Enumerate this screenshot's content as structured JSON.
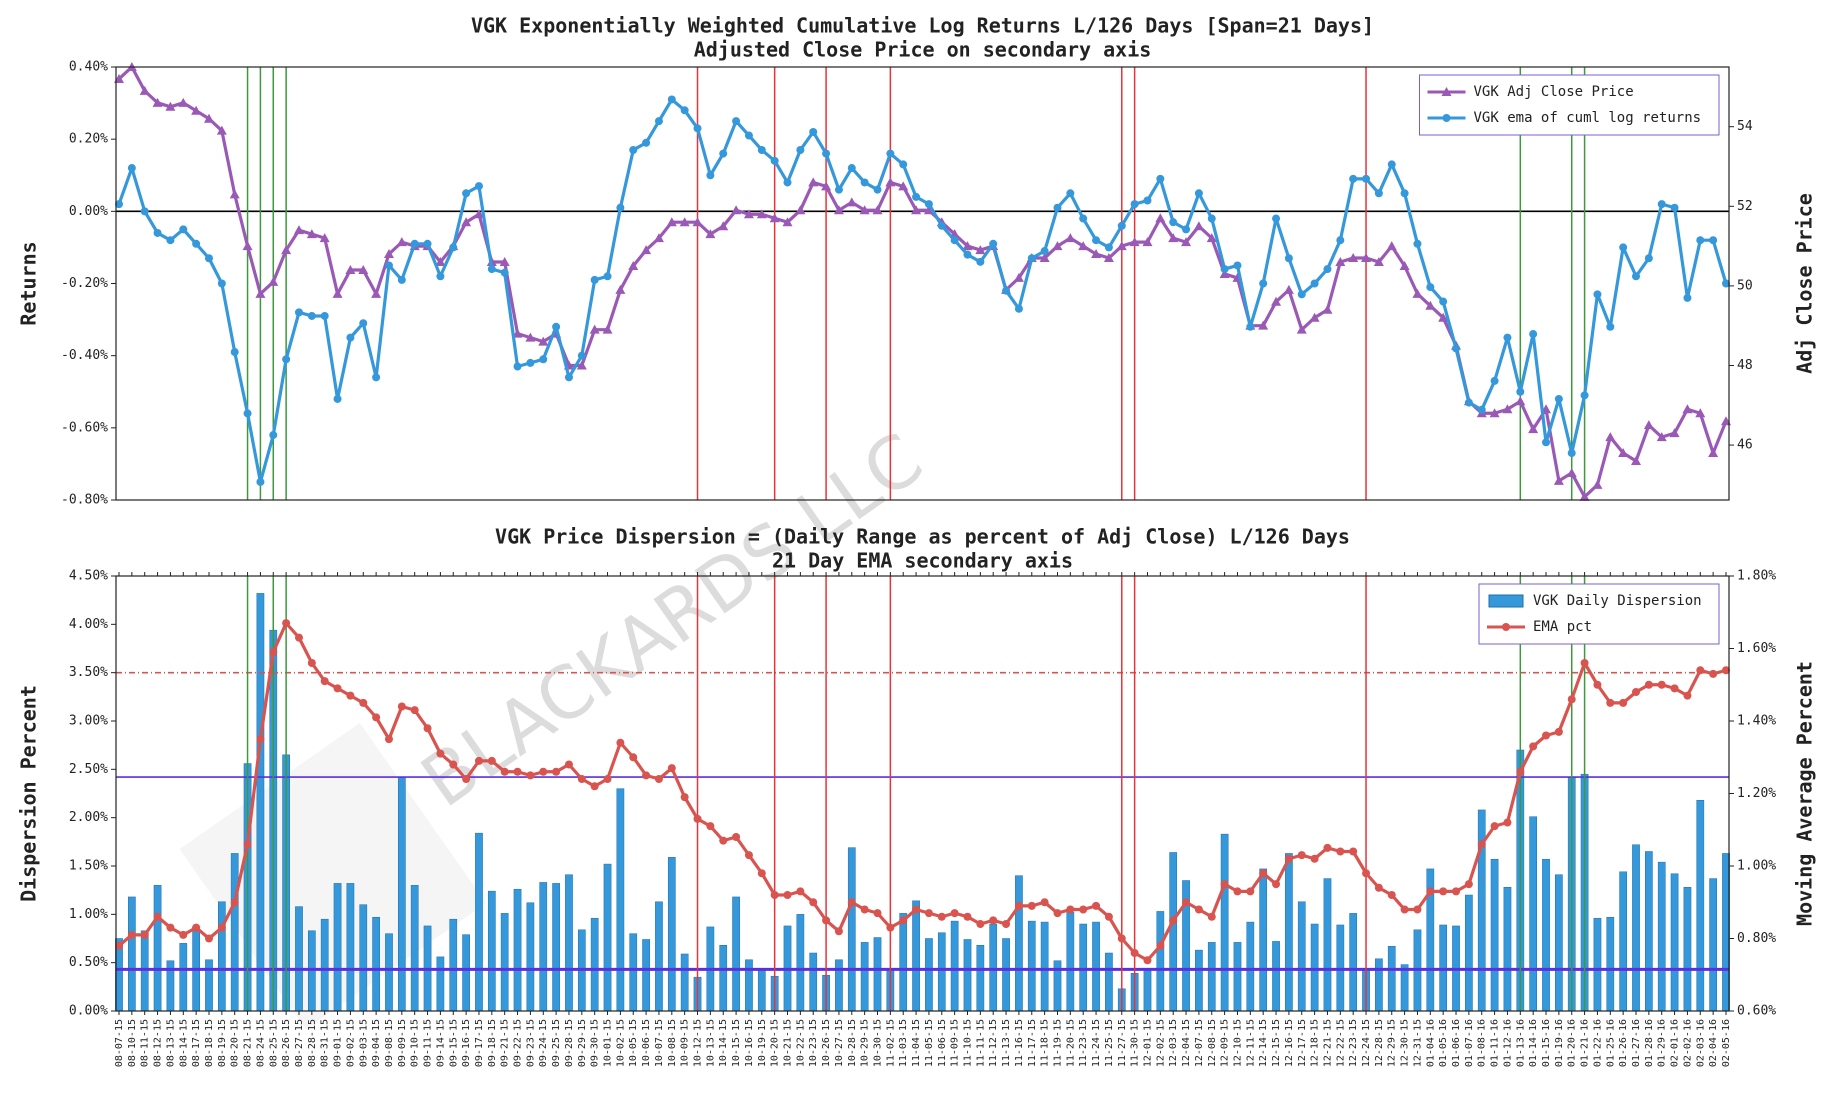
{
  "watermark": "BLACKARDS LLC",
  "chart_data": [
    {
      "type": "line",
      "title": "VGK Exponentially Weighted Cumulative Log Returns L/126 Days [Span=21 Days]",
      "subtitle": "Adjusted Close Price on secondary axis",
      "y_label": "Returns",
      "y2_label": "Adj Close Price",
      "series": [
        {
          "name": "VGK Adj Close Price",
          "type": "line",
          "marker": "triangle",
          "color": "#9b59b6",
          "axis": "y2",
          "values": [
            55.2,
            55.5,
            54.9,
            54.6,
            54.5,
            54.6,
            54.4,
            54.2,
            53.9,
            52.3,
            51.0,
            49.8,
            50.1,
            50.9,
            51.4,
            51.3,
            51.2,
            49.8,
            50.4,
            50.4,
            49.8,
            50.8,
            51.1,
            51.0,
            51.0,
            50.6,
            51.0,
            51.6,
            51.8,
            50.6,
            50.6,
            48.8,
            48.7,
            48.6,
            48.8,
            48.0,
            48.0,
            48.9,
            48.9,
            49.9,
            50.5,
            50.9,
            51.2,
            51.6,
            51.6,
            51.6,
            51.3,
            51.5,
            51.9,
            51.8,
            51.8,
            51.7,
            51.6,
            51.9,
            52.6,
            52.5,
            51.9,
            52.1,
            51.9,
            51.9,
            52.6,
            52.5,
            51.9,
            51.9,
            51.6,
            51.3,
            51.0,
            50.9,
            51.0,
            49.9,
            50.2,
            50.7,
            50.7,
            51.0,
            51.2,
            51.0,
            50.8,
            50.7,
            51.0,
            51.1,
            51.1,
            51.7,
            51.2,
            51.1,
            51.5,
            51.2,
            50.3,
            50.2,
            49.0,
            49.0,
            49.6,
            49.9,
            48.9,
            49.2,
            49.4,
            50.6,
            50.7,
            50.7,
            50.6,
            51.0,
            50.5,
            49.8,
            49.5,
            49.2,
            48.5,
            47.1,
            46.8,
            46.8,
            46.9,
            47.1,
            46.4,
            46.9,
            45.1,
            45.3,
            44.7,
            45.0,
            46.2,
            45.8,
            45.6,
            46.5,
            46.2,
            46.3,
            46.9,
            46.8,
            45.8,
            46.6
          ]
        },
        {
          "name": "VGK ema of cuml log returns",
          "type": "line",
          "marker": "circle",
          "color": "#3498db",
          "values": [
            0.02,
            0.12,
            0.0,
            -0.06,
            -0.08,
            -0.05,
            -0.09,
            -0.13,
            -0.2,
            -0.39,
            -0.56,
            -0.75,
            -0.62,
            -0.41,
            -0.28,
            -0.29,
            -0.29,
            -0.52,
            -0.35,
            -0.31,
            -0.46,
            -0.15,
            -0.19,
            -0.09,
            -0.09,
            -0.18,
            -0.1,
            0.05,
            0.07,
            -0.16,
            -0.17,
            -0.43,
            -0.42,
            -0.41,
            -0.32,
            -0.46,
            -0.4,
            -0.19,
            -0.18,
            0.01,
            0.17,
            0.19,
            0.25,
            0.31,
            0.28,
            0.23,
            0.1,
            0.16,
            0.25,
            0.21,
            0.17,
            0.14,
            0.08,
            0.17,
            0.22,
            0.16,
            0.06,
            0.12,
            0.08,
            0.06,
            0.16,
            0.13,
            0.04,
            0.02,
            -0.04,
            -0.08,
            -0.12,
            -0.14,
            -0.09,
            -0.22,
            -0.27,
            -0.13,
            -0.11,
            0.01,
            0.05,
            -0.02,
            -0.08,
            -0.1,
            -0.04,
            0.02,
            0.03,
            0.09,
            -0.03,
            -0.05,
            0.05,
            -0.02,
            -0.16,
            -0.15,
            -0.32,
            -0.2,
            -0.02,
            -0.13,
            -0.23,
            -0.2,
            -0.16,
            -0.08,
            0.09,
            0.09,
            0.05,
            0.13,
            0.05,
            -0.09,
            -0.21,
            -0.25,
            -0.38,
            -0.53,
            -0.55,
            -0.47,
            -0.35,
            -0.5,
            -0.34,
            -0.64,
            -0.52,
            -0.67,
            -0.51,
            -0.23,
            -0.32,
            -0.1,
            -0.18,
            -0.13,
            0.02,
            0.01,
            -0.24,
            -0.08,
            -0.08,
            -0.2
          ]
        }
      ],
      "ylim": [
        -0.8,
        0.4
      ],
      "yticks": [
        {
          "value": -0.8,
          "label": "-0.80%"
        },
        {
          "value": -0.6,
          "label": "-0.60%"
        },
        {
          "value": -0.4,
          "label": "-0.40%"
        },
        {
          "value": -0.2,
          "label": "-0.20%"
        },
        {
          "value": 0,
          "label": "0.00%"
        },
        {
          "value": 0.2,
          "label": "0.20%"
        },
        {
          "value": 0.4,
          "label": "0.40%"
        }
      ],
      "y2lim": [
        44.62,
        55.5
      ],
      "y2ticks": [
        46,
        48,
        50,
        52,
        54
      ],
      "legend": "upper right",
      "hlines": [
        {
          "y": 0,
          "color": "#000000",
          "style": "solid"
        }
      ],
      "vlines": [
        {
          "color": "#3c9a3c",
          "x": [
            "08-21-15",
            "08-24-15",
            "08-25-15",
            "08-26-15",
            "01-13-16",
            "01-20-16",
            "01-21-16"
          ]
        },
        {
          "color": "#e8333a",
          "x": [
            "10-12-15",
            "10-20-15",
            "10-26-15",
            "11-02-15",
            "11-27-15",
            "11-30-15",
            "12-24-15"
          ]
        }
      ]
    },
    {
      "type": "bar",
      "title": "VGK Price Dispersion = (Daily Range as percent of Adj Close) L/126 Days",
      "subtitle": "21 Day EMA secondary axis",
      "y_label": "Dispersion Percent",
      "y2_label": "Moving Average Percent",
      "categories": [
        "08-07-15",
        "08-10-15",
        "08-11-15",
        "08-12-15",
        "08-13-15",
        "08-14-15",
        "08-17-15",
        "08-18-15",
        "08-19-15",
        "08-20-15",
        "08-21-15",
        "08-24-15",
        "08-25-15",
        "08-26-15",
        "08-27-15",
        "08-28-15",
        "08-31-15",
        "09-01-15",
        "09-02-15",
        "09-03-15",
        "09-04-15",
        "09-08-15",
        "09-09-15",
        "09-10-15",
        "09-11-15",
        "09-14-15",
        "09-15-15",
        "09-16-15",
        "09-17-15",
        "09-18-15",
        "09-21-15",
        "09-22-15",
        "09-23-15",
        "09-24-15",
        "09-25-15",
        "09-28-15",
        "09-29-15",
        "09-30-15",
        "10-01-15",
        "10-02-15",
        "10-05-15",
        "10-06-15",
        "10-07-15",
        "10-08-15",
        "10-09-15",
        "10-12-15",
        "10-13-15",
        "10-14-15",
        "10-15-15",
        "10-16-15",
        "10-19-15",
        "10-20-15",
        "10-21-15",
        "10-22-15",
        "10-23-15",
        "10-26-15",
        "10-27-15",
        "10-28-15",
        "10-29-15",
        "10-30-15",
        "11-02-15",
        "11-03-15",
        "11-04-15",
        "11-05-15",
        "11-06-15",
        "11-09-15",
        "11-10-15",
        "11-11-15",
        "11-12-15",
        "11-13-15",
        "11-16-15",
        "11-17-15",
        "11-18-15",
        "11-19-15",
        "11-20-15",
        "11-23-15",
        "11-24-15",
        "11-25-15",
        "11-27-15",
        "11-30-15",
        "12-01-15",
        "12-02-15",
        "12-03-15",
        "12-04-15",
        "12-07-15",
        "12-08-15",
        "12-09-15",
        "12-10-15",
        "12-11-15",
        "12-14-15",
        "12-15-15",
        "12-16-15",
        "12-17-15",
        "12-18-15",
        "12-21-15",
        "12-22-15",
        "12-23-15",
        "12-24-15",
        "12-28-15",
        "12-29-15",
        "12-30-15",
        "12-31-15",
        "01-04-16",
        "01-05-16",
        "01-06-16",
        "01-07-16",
        "01-08-16",
        "01-11-16",
        "01-12-16",
        "01-13-16",
        "01-14-16",
        "01-15-16",
        "01-19-16",
        "01-20-16",
        "01-21-16",
        "01-22-16",
        "01-25-16",
        "01-26-16",
        "01-27-16",
        "01-28-16",
        "01-29-16",
        "02-01-16",
        "02-02-16",
        "02-03-16",
        "02-04-16",
        "02-05-16"
      ],
      "series": [
        {
          "name": "VGK Daily Dispersion",
          "type": "bar",
          "color": "#3498db",
          "values": [
            0.75,
            1.18,
            0.83,
            1.3,
            0.52,
            0.7,
            0.87,
            0.53,
            1.13,
            1.63,
            2.56,
            4.32,
            3.94,
            2.65,
            1.08,
            0.83,
            0.95,
            1.32,
            1.32,
            1.1,
            0.97,
            0.8,
            2.42,
            1.3,
            0.88,
            0.56,
            0.95,
            0.79,
            1.84,
            1.24,
            1.01,
            1.26,
            1.12,
            1.33,
            1.32,
            1.41,
            0.84,
            0.96,
            1.52,
            2.3,
            0.8,
            0.74,
            1.13,
            1.59,
            0.59,
            0.35,
            0.87,
            0.68,
            1.18,
            0.53,
            0.42,
            0.36,
            0.88,
            1.0,
            0.6,
            0.37,
            0.53,
            1.69,
            0.71,
            0.76,
            0.43,
            1.01,
            1.14,
            0.75,
            0.81,
            0.93,
            0.74,
            0.68,
            0.9,
            0.75,
            1.4,
            0.93,
            0.92,
            0.52,
            1.02,
            0.9,
            0.92,
            0.6,
            0.23,
            0.39,
            0.42,
            1.03,
            1.64,
            1.35,
            0.63,
            0.71,
            1.83,
            0.71,
            0.92,
            1.47,
            0.72,
            1.63,
            1.13,
            0.9,
            1.37,
            0.89,
            1.01,
            0.44,
            0.54,
            0.67,
            0.48,
            0.84,
            1.47,
            0.89,
            0.88,
            1.2,
            2.08,
            1.57,
            1.28,
            2.7,
            2.01,
            1.57,
            1.41,
            2.42,
            2.45,
            0.96,
            0.97,
            1.44,
            1.72,
            1.65,
            1.54,
            1.42,
            1.28,
            2.18,
            1.37,
            1.63
          ]
        },
        {
          "name": "EMA pct",
          "type": "line",
          "marker": "circle",
          "color": "#d9534f",
          "axis": "y2",
          "values": [
            0.78,
            0.81,
            0.81,
            0.86,
            0.83,
            0.81,
            0.83,
            0.8,
            0.83,
            0.9,
            1.06,
            1.35,
            1.59,
            1.67,
            1.63,
            1.56,
            1.51,
            1.49,
            1.47,
            1.45,
            1.41,
            1.35,
            1.44,
            1.43,
            1.38,
            1.31,
            1.28,
            1.24,
            1.29,
            1.29,
            1.26,
            1.26,
            1.25,
            1.26,
            1.26,
            1.28,
            1.24,
            1.22,
            1.24,
            1.34,
            1.3,
            1.25,
            1.24,
            1.27,
            1.19,
            1.13,
            1.11,
            1.07,
            1.08,
            1.03,
            0.98,
            0.92,
            0.92,
            0.93,
            0.9,
            0.85,
            0.82,
            0.9,
            0.88,
            0.87,
            0.83,
            0.85,
            0.88,
            0.87,
            0.86,
            0.87,
            0.86,
            0.84,
            0.85,
            0.84,
            0.89,
            0.89,
            0.9,
            0.87,
            0.88,
            0.88,
            0.89,
            0.86,
            0.8,
            0.76,
            0.74,
            0.78,
            0.85,
            0.9,
            0.88,
            0.86,
            0.95,
            0.93,
            0.93,
            0.98,
            0.95,
            1.02,
            1.03,
            1.02,
            1.05,
            1.04,
            1.04,
            0.98,
            0.94,
            0.92,
            0.88,
            0.88,
            0.93,
            0.93,
            0.93,
            0.95,
            1.06,
            1.11,
            1.12,
            1.26,
            1.33,
            1.36,
            1.37,
            1.46,
            1.56,
            1.5,
            1.45,
            1.45,
            1.48,
            1.5,
            1.5,
            1.49,
            1.47,
            1.54,
            1.53,
            1.54
          ]
        }
      ],
      "ylim": [
        0,
        4.5
      ],
      "yticks": [
        {
          "value": 0,
          "label": "0.00%"
        },
        {
          "value": 0.5,
          "label": "0.50%"
        },
        {
          "value": 1,
          "label": "1.00%"
        },
        {
          "value": 1.5,
          "label": "1.50%"
        },
        {
          "value": 2,
          "label": "2.00%"
        },
        {
          "value": 2.5,
          "label": "2.50%"
        },
        {
          "value": 3,
          "label": "3.00%"
        },
        {
          "value": 3.5,
          "label": "3.50%"
        },
        {
          "value": 4,
          "label": "4.00%"
        },
        {
          "value": 4.5,
          "label": "4.50%"
        }
      ],
      "y2lim": [
        0.6,
        1.8
      ],
      "y2ticks": [
        {
          "value": 0.6,
          "label": "0.60%"
        },
        {
          "value": 0.8,
          "label": "0.80%"
        },
        {
          "value": 1.0,
          "label": "1.00%"
        },
        {
          "value": 1.2,
          "label": "1.20%"
        },
        {
          "value": 1.4,
          "label": "1.40%"
        },
        {
          "value": 1.6,
          "label": "1.60%"
        },
        {
          "value": 1.8,
          "label": "1.80%"
        }
      ],
      "legend": "upper right",
      "hlines": [
        {
          "y": 3.5,
          "color": "#d9534f",
          "style": "dashdot"
        },
        {
          "y": 2.42,
          "color": "#5b2ee0",
          "style": "solid"
        },
        {
          "y": 0.43,
          "color": "#5b2ee0",
          "style": "thick"
        }
      ],
      "vlines": [
        {
          "color": "#3c9a3c",
          "x": [
            "08-21-15",
            "08-25-15",
            "08-26-15",
            "01-13-16",
            "01-20-16",
            "01-21-16"
          ]
        },
        {
          "color": "#e8333a",
          "x": [
            "10-12-15",
            "10-20-15",
            "10-26-15",
            "11-02-15",
            "11-27-15",
            "11-30-15",
            "12-24-15"
          ]
        }
      ]
    }
  ]
}
